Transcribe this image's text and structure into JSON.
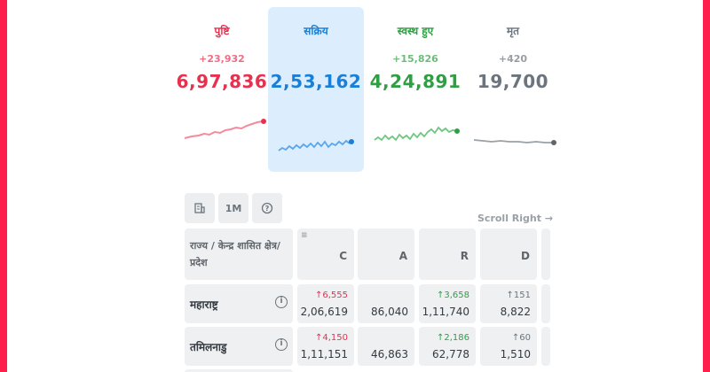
{
  "stats": {
    "confirmed": {
      "label": "पुष्टि",
      "delta": "+23,932",
      "total": "6,97,836",
      "color": "#e8304f"
    },
    "active": {
      "label": "सक्रिय",
      "delta": "",
      "total": "2,53,162",
      "color": "#1a7fd6"
    },
    "recovered": {
      "label": "स्वस्थ हुए",
      "delta": "+15,826",
      "total": "4,24,891",
      "color": "#2ea043"
    },
    "deceased": {
      "label": "मृत",
      "delta": "+420",
      "total": "19,700",
      "color": "#6c757d"
    }
  },
  "toolbar": {
    "building_icon": "building-icon",
    "timespan_label": "1M",
    "help_icon": "question-icon"
  },
  "scroll_hint": "Scroll Right →",
  "table": {
    "state_header": "राज्य / केन्द्र शासित क्षेत्र/प्रदेश",
    "columns": [
      "C",
      "A",
      "R",
      "D"
    ],
    "rows": [
      {
        "state": "महाराष्ट्र",
        "c_delta": "↑6,555",
        "c": "2,06,619",
        "a": "86,040",
        "r_delta": "↑3,658",
        "r": "1,11,740",
        "d_delta": "↑151",
        "d": "8,822"
      },
      {
        "state": "तमिलनाडु",
        "c_delta": "↑4,150",
        "c": "1,11,151",
        "a": "46,863",
        "r_delta": "↑2,186",
        "r": "62,778",
        "d_delta": "↑60",
        "d": "1,510"
      }
    ]
  }
}
